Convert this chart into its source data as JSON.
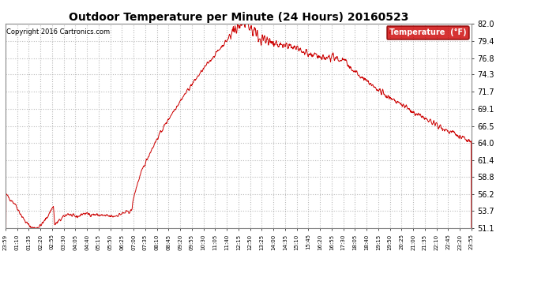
{
  "title": "Outdoor Temperature per Minute (24 Hours) 20160523",
  "copyright": "Copyright 2016 Cartronics.com",
  "legend_label": "Temperature  (°F)",
  "line_color": "#cc0000",
  "background_color": "#ffffff",
  "grid_color": "#bbbbbb",
  "yticks": [
    51.1,
    53.7,
    56.2,
    58.8,
    61.4,
    64.0,
    66.5,
    69.1,
    71.7,
    74.3,
    76.8,
    79.4,
    82.0
  ],
  "ylim": [
    51.1,
    82.0
  ],
  "xtick_labels": [
    "23:59",
    "01:10",
    "01:35",
    "02:20",
    "02:55",
    "03:30",
    "04:05",
    "04:40",
    "05:15",
    "05:50",
    "06:25",
    "07:00",
    "07:35",
    "08:10",
    "08:45",
    "09:20",
    "09:55",
    "10:30",
    "11:05",
    "11:40",
    "12:15",
    "12:50",
    "13:25",
    "14:00",
    "14:35",
    "15:10",
    "15:45",
    "16:20",
    "16:55",
    "17:30",
    "18:05",
    "18:40",
    "19:15",
    "19:50",
    "20:25",
    "21:00",
    "21:35",
    "22:10",
    "22:45",
    "23:20",
    "23:55"
  ]
}
